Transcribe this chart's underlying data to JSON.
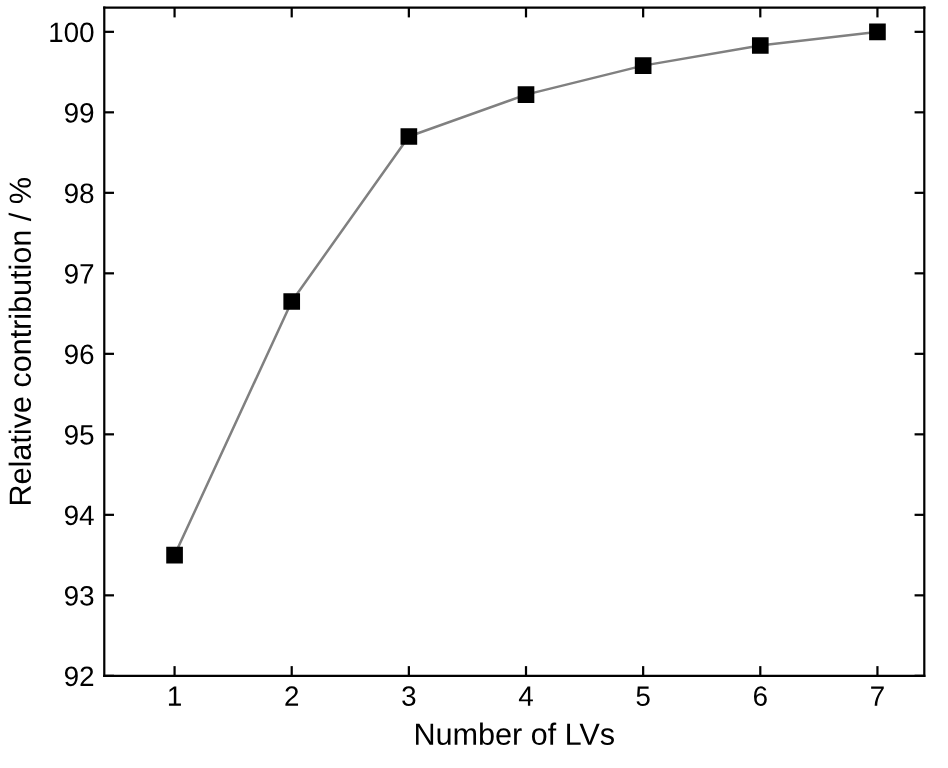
{
  "chart_data": {
    "type": "line",
    "xlabel": "Number of LVs",
    "ylabel": "Relative contribution / %",
    "x": [
      1,
      2,
      3,
      4,
      5,
      6,
      7
    ],
    "series": [
      {
        "color": "#808080",
        "values": [
          93.5,
          96.65,
          98.7,
          99.22,
          99.58,
          99.83,
          100.0
        ]
      }
    ],
    "marker": "square",
    "line_style": "solid",
    "xlim": [
      0.4,
      7.4
    ],
    "ylim": [
      92,
      100.3
    ],
    "xticks": [
      1,
      2,
      3,
      4,
      5,
      6,
      7
    ],
    "yticks": [
      92,
      93,
      94,
      95,
      96,
      97,
      98,
      99,
      100
    ],
    "grid": false,
    "legend": false
  }
}
